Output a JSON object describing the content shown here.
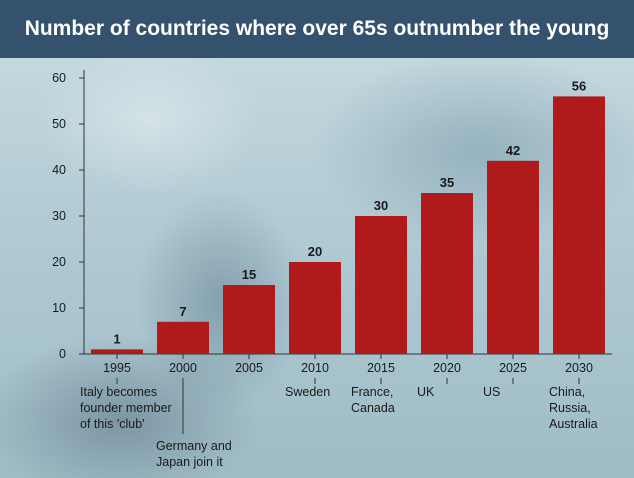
{
  "title": "Number of countries where over 65s outnumber the young",
  "colors": {
    "bar": "#b01a1a",
    "title_bg": "#34526e",
    "title_text": "#ffffff",
    "axis": "#333333"
  },
  "chart_data": {
    "type": "bar",
    "title": "Number of countries where over 65s outnumber the young",
    "xlabel": "",
    "ylabel": "",
    "ylim": [
      0,
      60
    ],
    "yticks": [
      0,
      10,
      20,
      30,
      40,
      50,
      60
    ],
    "grid": false,
    "categories": [
      "1995",
      "2000",
      "2005",
      "2010",
      "2015",
      "2020",
      "2025",
      "2030"
    ],
    "values": [
      1,
      7,
      15,
      20,
      30,
      35,
      42,
      56
    ],
    "annotations": [
      {
        "category": "1995",
        "lines": [
          "Italy becomes",
          "founder member",
          "of this 'club'"
        ]
      },
      {
        "category": "2000",
        "lines": [
          "Germany and",
          "Japan join it"
        ]
      },
      {
        "category": "2010",
        "lines": [
          "Sweden"
        ]
      },
      {
        "category": "2015",
        "lines": [
          "France,",
          "Canada"
        ]
      },
      {
        "category": "2020",
        "lines": [
          "UK"
        ]
      },
      {
        "category": "2025",
        "lines": [
          "US"
        ]
      },
      {
        "category": "2030",
        "lines": [
          "China,",
          "Russia,",
          "Australia"
        ]
      }
    ]
  }
}
